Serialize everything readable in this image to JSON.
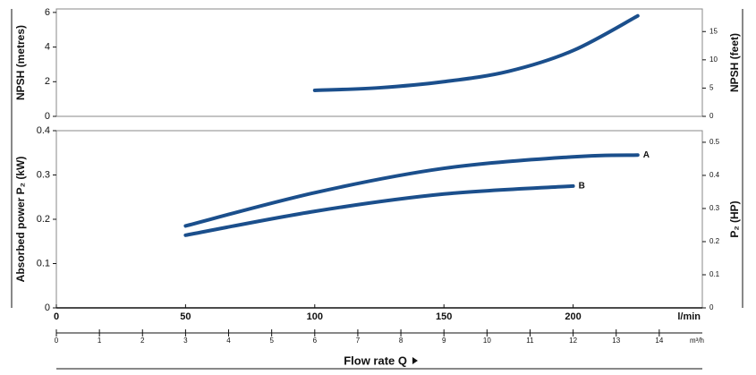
{
  "chart_data": [
    {
      "type": "line",
      "ylabel": "NPSH  (metres)",
      "y2label": "NPSH  (feet)",
      "xlim": [
        0,
        250
      ],
      "ylim": [
        0,
        6.2
      ],
      "yticks": [
        0,
        2,
        4,
        6
      ],
      "y2lim": [
        0,
        19
      ],
      "y2ticks": [
        0,
        5,
        10,
        15
      ],
      "series": [
        {
          "color": "#1b4f8c",
          "x": [
            100,
            125,
            150,
            175,
            200,
            225
          ],
          "values": [
            1.5,
            1.65,
            2.0,
            2.6,
            3.8,
            5.8
          ]
        }
      ]
    },
    {
      "type": "line",
      "title": "Flow rate Q",
      "ylabel": "Absorbed power  P₂  (kW)",
      "y2label": "P₂  (HP)",
      "xlabel": "l/min",
      "xlim": [
        0,
        250
      ],
      "xticks": [
        0,
        50,
        100,
        150,
        200
      ],
      "x2label": "m³/h",
      "x2lim": [
        0,
        15
      ],
      "x2ticks": [
        0,
        1,
        2,
        3,
        4,
        5,
        6,
        7,
        8,
        9,
        10,
        11,
        12,
        13,
        14
      ],
      "ylim": [
        0,
        0.4
      ],
      "yticks": [
        0,
        0.1,
        0.2,
        0.3,
        0.4
      ],
      "y2lim": [
        0,
        0.535
      ],
      "y2ticks": [
        0,
        0.1,
        0.2,
        0.3,
        0.4,
        0.5
      ],
      "series": [
        {
          "name": "A",
          "color": "#1b4f8c",
          "x": [
            50,
            100,
            150,
            200,
            225
          ],
          "values": [
            0.185,
            0.26,
            0.315,
            0.341,
            0.345
          ]
        },
        {
          "name": "B",
          "color": "#1b4f8c",
          "x": [
            50,
            100,
            150,
            200
          ],
          "values": [
            0.164,
            0.218,
            0.257,
            0.275
          ]
        }
      ]
    }
  ]
}
